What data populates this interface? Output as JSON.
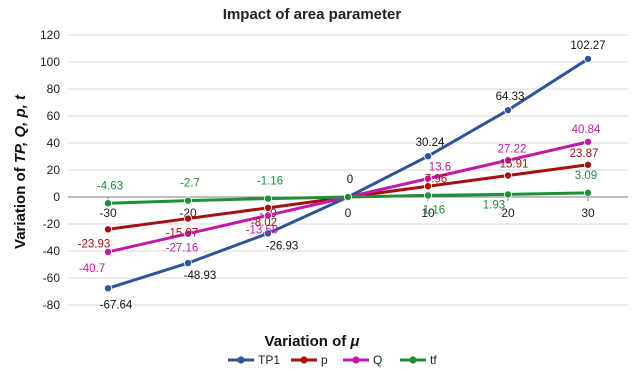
{
  "chart_data": {
    "type": "line",
    "title": "Impact of area parameter",
    "xlabel_prefix": "Variation of ",
    "xlabel_symbol": "μ",
    "ylabel_prefix": "Variation of ",
    "ylabel_symbols": "TP, Q, p, t",
    "ylabel_sub": "1",
    "ylabel_sub2": "f",
    "x": [
      -30,
      -20,
      -10,
      0,
      10,
      20,
      30
    ],
    "x_tick_labels": [
      "-30",
      "-20",
      "-10",
      "0",
      "10",
      "20",
      "30"
    ],
    "ylim": [
      -80,
      120
    ],
    "y_ticks": [
      -80,
      -60,
      -40,
      -20,
      0,
      20,
      40,
      60,
      80,
      100,
      120
    ],
    "y_tick_labels": [
      "-80",
      "-60",
      "-40",
      "-20",
      "0",
      "20",
      "40",
      "60",
      "80",
      "100",
      "120"
    ],
    "grid": "horizontal",
    "legend_position": "bottom",
    "series": [
      {
        "name": "TP1",
        "color": "#2f5597",
        "values": [
          -67.64,
          -48.93,
          -26.93,
          0,
          30.24,
          64.33,
          102.27
        ],
        "labels": [
          "-67.64",
          "-48.93",
          "-26.93",
          "",
          "30.24",
          "64.33",
          "102.27"
        ]
      },
      {
        "name": "p",
        "color": "#a50f0f",
        "values": [
          -23.93,
          -15.97,
          -8.02,
          0,
          7.96,
          15.91,
          23.87
        ],
        "labels": [
          "-23.93",
          "-15.97",
          "-8.02",
          "",
          "7.96",
          "15.91",
          "23.87"
        ]
      },
      {
        "name": "Q",
        "color": "#c21aa8",
        "values": [
          -40.7,
          -27.16,
          -13.59,
          0,
          13.6,
          27.22,
          40.84
        ],
        "labels": [
          "-40.7",
          "-27.16",
          "-13.59",
          "0",
          "13.6",
          "27.22",
          "40.84"
        ]
      },
      {
        "name": "tf",
        "color": "#1f8f3a",
        "values": [
          -4.63,
          -2.7,
          -1.16,
          0,
          1.16,
          1.93,
          3.09
        ],
        "labels": [
          "-4.63",
          "-2.7",
          "-1.16",
          "",
          "1.16",
          "1.93",
          "3.09"
        ]
      }
    ]
  }
}
